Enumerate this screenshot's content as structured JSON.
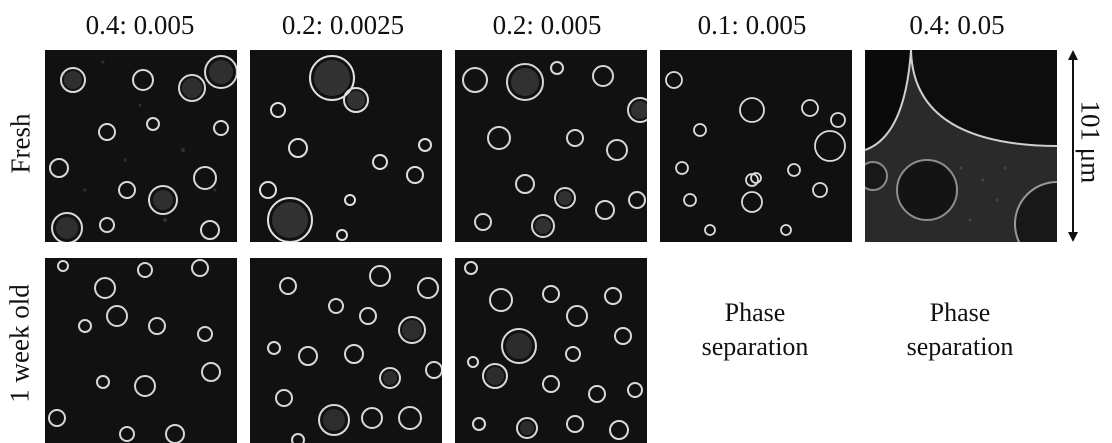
{
  "columns": [
    {
      "header": "0.4: 0.005"
    },
    {
      "header": "0.2: 0.0025"
    },
    {
      "header": "0.2: 0.005"
    },
    {
      "header": "0.1: 0.005"
    },
    {
      "header": "0.4: 0.05"
    }
  ],
  "rows": [
    {
      "label": "Fresh"
    },
    {
      "label": "1 week old"
    }
  ],
  "phase_separation_text": "Phase\nseparation",
  "phase_notes": [
    {
      "line1": "Phase",
      "line2": "separation"
    },
    {
      "line1": "Phase",
      "line2": "separation"
    }
  ],
  "scale_bar": {
    "label": "101 μm"
  }
}
